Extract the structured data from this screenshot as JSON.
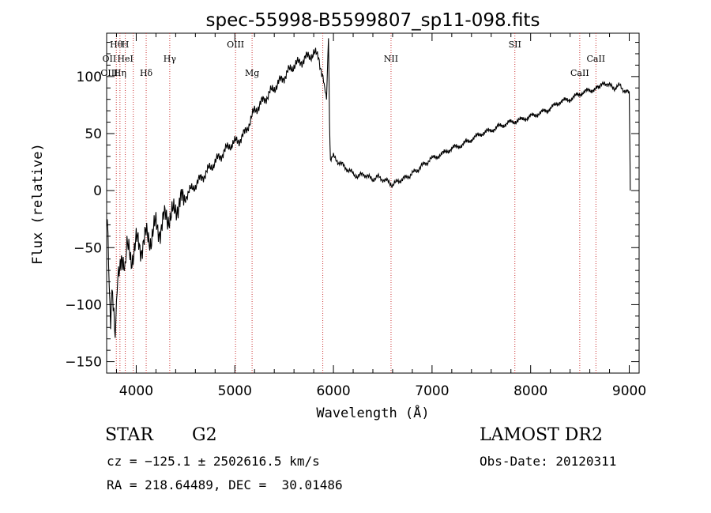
{
  "chart_data": {
    "type": "line",
    "title": "spec-55998-B5599807_sp11-098.fits",
    "xlabel": "Wavelength (Å)",
    "ylabel": "Flux (relative)",
    "xlim": [
      3700,
      9100
    ],
    "ylim": [
      -160,
      138
    ],
    "x_ticks": [
      4000,
      5000,
      6000,
      7000,
      8000,
      9000
    ],
    "y_ticks": [
      -150,
      -100,
      -50,
      0,
      50,
      100
    ],
    "grid": false,
    "series": [
      {
        "color": "#000000",
        "x": [
          3700,
          3720,
          3740,
          3760,
          3780,
          3800,
          3820,
          3850,
          3880,
          3900,
          3950,
          4000,
          4050,
          4100,
          4150,
          4200,
          4250,
          4300,
          4350,
          4400,
          4450,
          4500,
          4550,
          4600,
          4650,
          4700,
          4750,
          4800,
          4850,
          4900,
          4950,
          5000,
          5050,
          5100,
          5150,
          5200,
          5250,
          5300,
          5350,
          5400,
          5450,
          5500,
          5550,
          5600,
          5650,
          5700,
          5750,
          5800,
          5850,
          5900,
          5930,
          5950,
          5960,
          5970,
          6000,
          6050,
          6100,
          6150,
          6200,
          6250,
          6300,
          6350,
          6400,
          6450,
          6500,
          6550,
          6600,
          6650,
          6700,
          6750,
          6800,
          6850,
          6900,
          6950,
          7000,
          7100,
          7200,
          7300,
          7400,
          7500,
          7600,
          7700,
          7800,
          7900,
          8000,
          8100,
          8200,
          8300,
          8400,
          8500,
          8600,
          8700,
          8750,
          8800,
          8850,
          8900,
          8950,
          9000,
          9005,
          9010
        ],
        "y": [
          -20,
          -60,
          -120,
          -80,
          -130,
          -100,
          -70,
          -60,
          -70,
          -50,
          -60,
          -45,
          -50,
          -40,
          -42,
          -30,
          -35,
          -20,
          -25,
          -15,
          -10,
          -5,
          0,
          5,
          10,
          15,
          20,
          25,
          30,
          35,
          40,
          42,
          45,
          50,
          60,
          70,
          75,
          80,
          85,
          90,
          95,
          100,
          105,
          110,
          112,
          115,
          118,
          120,
          118,
          95,
          80,
          135,
          60,
          25,
          30,
          25,
          22,
          18,
          15,
          12,
          15,
          12,
          10,
          12,
          10,
          8,
          5,
          8,
          10,
          12,
          15,
          18,
          22,
          25,
          28,
          32,
          37,
          40,
          45,
          50,
          53,
          57,
          60,
          62,
          65,
          68,
          72,
          78,
          80,
          85,
          88,
          90,
          95,
          92,
          90,
          92,
          88,
          85,
          50,
          0
        ]
      }
    ],
    "line_markers": [
      {
        "label": "Hθ",
        "x": 3798,
        "row": 0
      },
      {
        "label": "H",
        "x": 3889,
        "row": 0
      },
      {
        "label": "OIII",
        "x": 5007,
        "row": 0
      },
      {
        "label": "NII",
        "x": 6584,
        "row": 1
      },
      {
        "label": "SII",
        "x": 7840,
        "row": 0
      },
      {
        "label": "CaII",
        "x": 8662,
        "row": 1
      },
      {
        "label": "OII",
        "x": 3727,
        "row": 1
      },
      {
        "label": "HeI",
        "x": 3889,
        "row": 1
      },
      {
        "label": "Hγ",
        "x": 4340,
        "row": 1
      },
      {
        "label": "OIII",
        "x": 3727,
        "row": 2
      },
      {
        "label": "Hη",
        "x": 3835,
        "row": 2
      },
      {
        "label": "Hδ",
        "x": 4101,
        "row": 2
      },
      {
        "label": "Mg",
        "x": 5175,
        "row": 2
      },
      {
        "label": "CaII",
        "x": 8498,
        "row": 2
      }
    ],
    "marker_lines_x": [
      3798,
      3835,
      3889,
      3970,
      4101,
      4340,
      5007,
      5175,
      5892,
      6584,
      7840,
      8498,
      8662
    ]
  },
  "info": {
    "class_label": "STAR",
    "subclass": "G2",
    "cz_text": "cz = −125.1 ± 2502616.5 km/s",
    "radec_text": "RA = 218.64489, DEC =  30.01486",
    "survey": "LAMOST DR2",
    "obs_date": "Obs-Date: 20120311"
  }
}
